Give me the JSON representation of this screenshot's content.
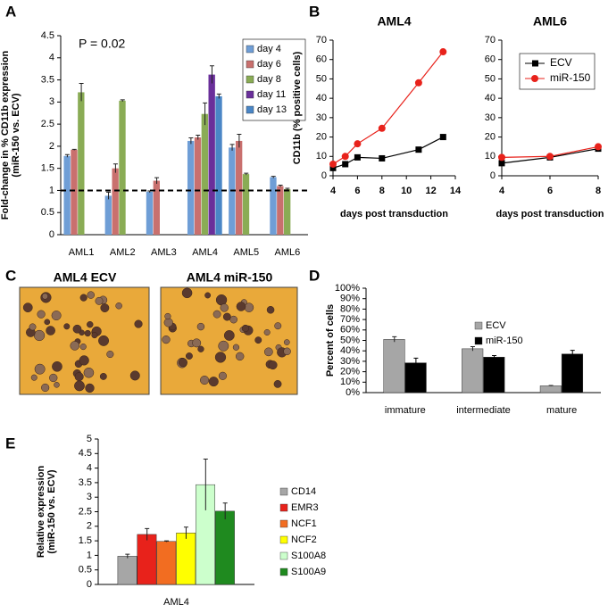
{
  "panel_labels": [
    "A",
    "B",
    "C",
    "D",
    "E"
  ],
  "images": [
    {
      "title": "AML4 ECV"
    },
    {
      "title": "AML4 miR-150"
    }
  ],
  "chart_data": [
    {
      "type": "bar",
      "ylabel": [
        "Fold-change in % CD11b expression",
        "(miR-150 vs. ECV)"
      ],
      "annotation": "P = 0.02",
      "reference_line": 1,
      "categories": [
        "AML1",
        "AML2",
        "AML3",
        "AML4",
        "AML5",
        "AML6"
      ],
      "series": [
        {
          "name": "day 4",
          "color": "#6f9ed6",
          "values": [
            1.78,
            0.88,
            0.97,
            2.12,
            1.97,
            1.3
          ],
          "errors": [
            0.03,
            0.08,
            0.02,
            0.07,
            0.07,
            0.02
          ]
        },
        {
          "name": "day 6",
          "color": "#c9706e",
          "values": [
            1.92,
            1.5,
            1.22,
            2.2,
            2.12,
            1.1
          ],
          "errors": [
            0.01,
            0.1,
            0.07,
            0.05,
            0.15,
            0.02
          ]
        },
        {
          "name": "day 8",
          "color": "#8aac55",
          "values": [
            3.22,
            3.03,
            null,
            2.73,
            1.37,
            1.03
          ],
          "errors": [
            0.2,
            0.02,
            null,
            0.25,
            0.02,
            0.02
          ]
        },
        {
          "name": "day 11",
          "color": "#6a2f9a",
          "values": [
            null,
            null,
            null,
            3.62,
            null,
            null
          ],
          "errors": [
            null,
            null,
            null,
            0.2,
            null,
            null
          ]
        },
        {
          "name": "day 13",
          "color": "#4a86c6",
          "values": [
            null,
            null,
            null,
            3.13,
            null,
            null
          ],
          "errors": [
            null,
            null,
            null,
            0.05,
            null,
            null
          ]
        }
      ],
      "ylim": [
        0,
        4.5
      ],
      "yticks": [
        0,
        0.5,
        1,
        1.5,
        2,
        2.5,
        3,
        3.5,
        4,
        4.5
      ],
      "legend": "upper right",
      "grid": false
    },
    {
      "type": "line",
      "title": "AML4",
      "ylabel": [
        "CD11b (% positive cells)"
      ],
      "xlabel": "days post transduction",
      "x": [
        4,
        5,
        6,
        8,
        11,
        13
      ],
      "series": [
        {
          "name": "ECV",
          "color": "#000000",
          "marker": "square",
          "values": [
            4,
            6,
            9.5,
            9,
            13.5,
            20
          ]
        },
        {
          "name": "miR-150",
          "color": "#e8221b",
          "marker": "circle",
          "values": [
            6,
            10,
            16.5,
            24.5,
            48,
            64
          ]
        }
      ],
      "xlim": [
        4,
        14
      ],
      "xticks": [
        4,
        6,
        8,
        10,
        12,
        14
      ],
      "ylim": [
        0,
        70
      ],
      "yticks": [
        0,
        10,
        20,
        30,
        40,
        50,
        60,
        70
      ],
      "grid": false
    },
    {
      "type": "line",
      "title": "AML6",
      "xlabel": "days post transduction",
      "x": [
        4,
        6,
        8
      ],
      "series": [
        {
          "name": "ECV",
          "color": "#000000",
          "marker": "square",
          "values": [
            6.5,
            9.5,
            14
          ]
        },
        {
          "name": "miR-150",
          "color": "#e8221b",
          "marker": "circle",
          "values": [
            9.5,
            10,
            15
          ]
        }
      ],
      "xlim": [
        4,
        8
      ],
      "xticks": [
        4,
        6,
        8
      ],
      "ylim": [
        0,
        70
      ],
      "yticks": [
        0,
        10,
        20,
        30,
        40,
        50,
        60,
        70
      ],
      "legend": "upper right",
      "grid": false
    },
    {
      "type": "bar",
      "ylabel": [
        "Percent of cells"
      ],
      "categories": [
        "immature",
        "intermediate",
        "mature"
      ],
      "series": [
        {
          "name": "ECV",
          "color": "#a6a6a6",
          "values": [
            51,
            42,
            6.5
          ],
          "errors": [
            2.5,
            2,
            0.3
          ]
        },
        {
          "name": "miR-150",
          "color": "#000000",
          "values": [
            28.5,
            34,
            37
          ],
          "errors": [
            4.5,
            1.5,
            3.5
          ]
        }
      ],
      "ylim": [
        0,
        100
      ],
      "yticks": [
        {
          "value": 0,
          "label": "0%"
        },
        {
          "value": 10,
          "label": "10%"
        },
        {
          "value": 20,
          "label": "20%"
        },
        {
          "value": 30,
          "label": "30%"
        },
        {
          "value": 40,
          "label": "40%"
        },
        {
          "value": 50,
          "label": "50%"
        },
        {
          "value": 60,
          "label": "60%"
        },
        {
          "value": 70,
          "label": "70%"
        },
        {
          "value": 80,
          "label": "80%"
        },
        {
          "value": 90,
          "label": "90%"
        },
        {
          "value": 100,
          "label": "100%"
        }
      ],
      "legend": "upper right",
      "grid": false
    },
    {
      "type": "bar",
      "ylabel": [
        "Relative expression",
        "(miR-150 vs. ECV)"
      ],
      "categories": [
        "AML4"
      ],
      "series": [
        {
          "name": "CD14",
          "color": "#a6a6a6",
          "values": [
            0.97
          ],
          "errors": [
            0.07
          ]
        },
        {
          "name": "EMR3",
          "color": "#e8221b",
          "values": [
            1.72
          ],
          "errors": [
            0.2
          ]
        },
        {
          "name": "NCF1",
          "color": "#f26d21",
          "values": [
            1.48
          ],
          "errors": [
            0.02
          ]
        },
        {
          "name": "NCF2",
          "color": "#ffff00",
          "values": [
            1.77
          ],
          "errors": [
            0.2
          ]
        },
        {
          "name": "S100A8",
          "color": "#ccffcc",
          "values": [
            3.43
          ],
          "errors": [
            0.88
          ]
        },
        {
          "name": "S100A9",
          "color": "#1f8a1f",
          "values": [
            2.52
          ],
          "errors": [
            0.28
          ]
        }
      ],
      "ylim": [
        0,
        5
      ],
      "yticks": [
        0,
        0.5,
        1,
        1.5,
        2,
        2.5,
        3,
        3.5,
        4,
        4.5,
        5
      ],
      "legend": "right",
      "grid": false
    }
  ]
}
